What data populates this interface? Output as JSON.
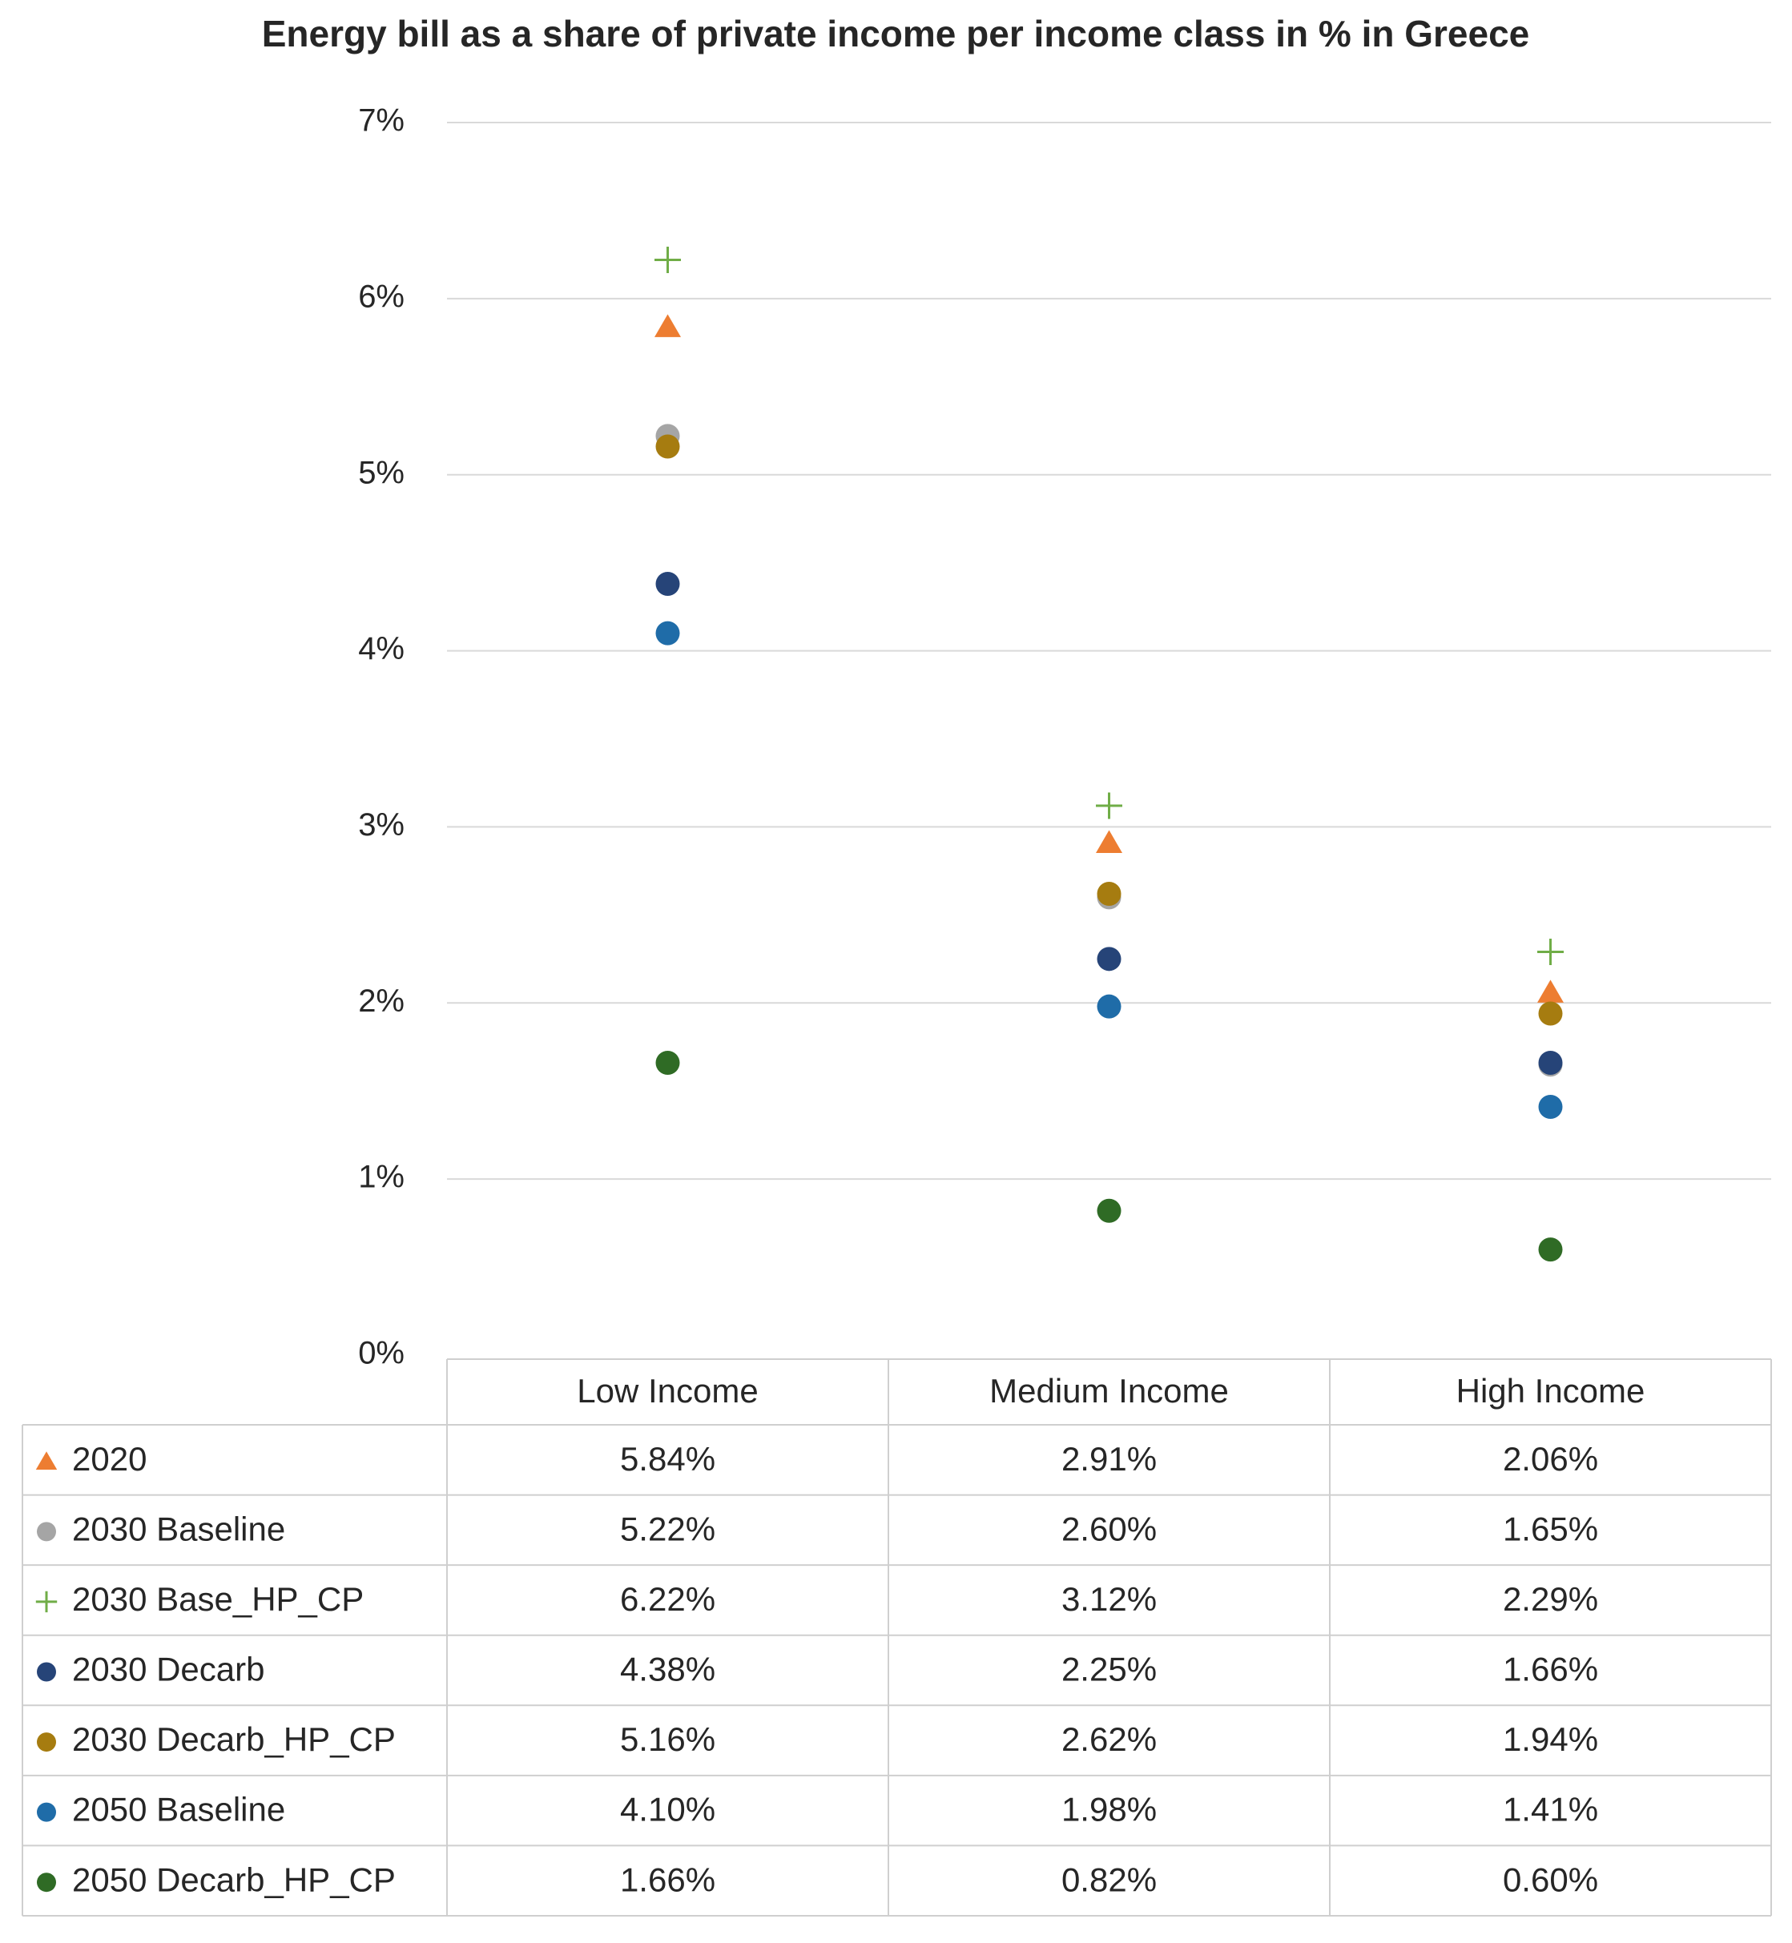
{
  "chart_data": {
    "type": "scatter",
    "title": "Energy bill as a share of private income per income class in % in Greece",
    "categories": [
      "Low Income",
      "Medium Income",
      "High Income"
    ],
    "ylim": [
      0,
      7
    ],
    "yticks": [
      {
        "value": 0,
        "label": "0%"
      },
      {
        "value": 1,
        "label": "1%"
      },
      {
        "value": 2,
        "label": "2%"
      },
      {
        "value": 3,
        "label": "3%"
      },
      {
        "value": 4,
        "label": "4%"
      },
      {
        "value": 5,
        "label": "5%"
      },
      {
        "value": 6,
        "label": "6%"
      },
      {
        "value": 7,
        "label": "7%"
      }
    ],
    "grid": true,
    "data_table": true,
    "series": [
      {
        "name": "2020",
        "color": "#ED7D31",
        "marker": "triangle",
        "values": [
          5.84,
          2.91,
          2.06
        ],
        "value_labels": [
          "5.84%",
          "2.91%",
          "2.06%"
        ]
      },
      {
        "name": "2030 Baseline",
        "color": "#A5A5A5",
        "marker": "circle",
        "values": [
          5.22,
          2.6,
          1.65
        ],
        "value_labels": [
          "5.22%",
          "2.60%",
          "1.65%"
        ]
      },
      {
        "name": "2030 Base_HP_CP",
        "color": "#70AD47",
        "marker": "plus",
        "values": [
          6.22,
          3.12,
          2.29
        ],
        "value_labels": [
          "6.22%",
          "3.12%",
          "2.29%"
        ]
      },
      {
        "name": "2030 Decarb",
        "color": "#264478",
        "marker": "circle",
        "values": [
          4.38,
          2.25,
          1.66
        ],
        "value_labels": [
          "4.38%",
          "2.25%",
          "1.66%"
        ]
      },
      {
        "name": "2030 Decarb_HP_CP",
        "color": "#A67C10",
        "marker": "circle",
        "values": [
          5.16,
          2.62,
          1.94
        ],
        "value_labels": [
          "5.16%",
          "2.62%",
          "1.94%"
        ]
      },
      {
        "name": "2050 Baseline",
        "color": "#1F6CA8",
        "marker": "circle",
        "values": [
          4.1,
          1.98,
          1.41
        ],
        "value_labels": [
          "4.10%",
          "1.98%",
          "1.41%"
        ]
      },
      {
        "name": "2050 Decarb_HP_CP",
        "color": "#2F6B25",
        "marker": "circle",
        "values": [
          1.66,
          0.82,
          0.6
        ],
        "value_labels": [
          "1.66%",
          "0.82%",
          "0.60%"
        ]
      }
    ]
  }
}
